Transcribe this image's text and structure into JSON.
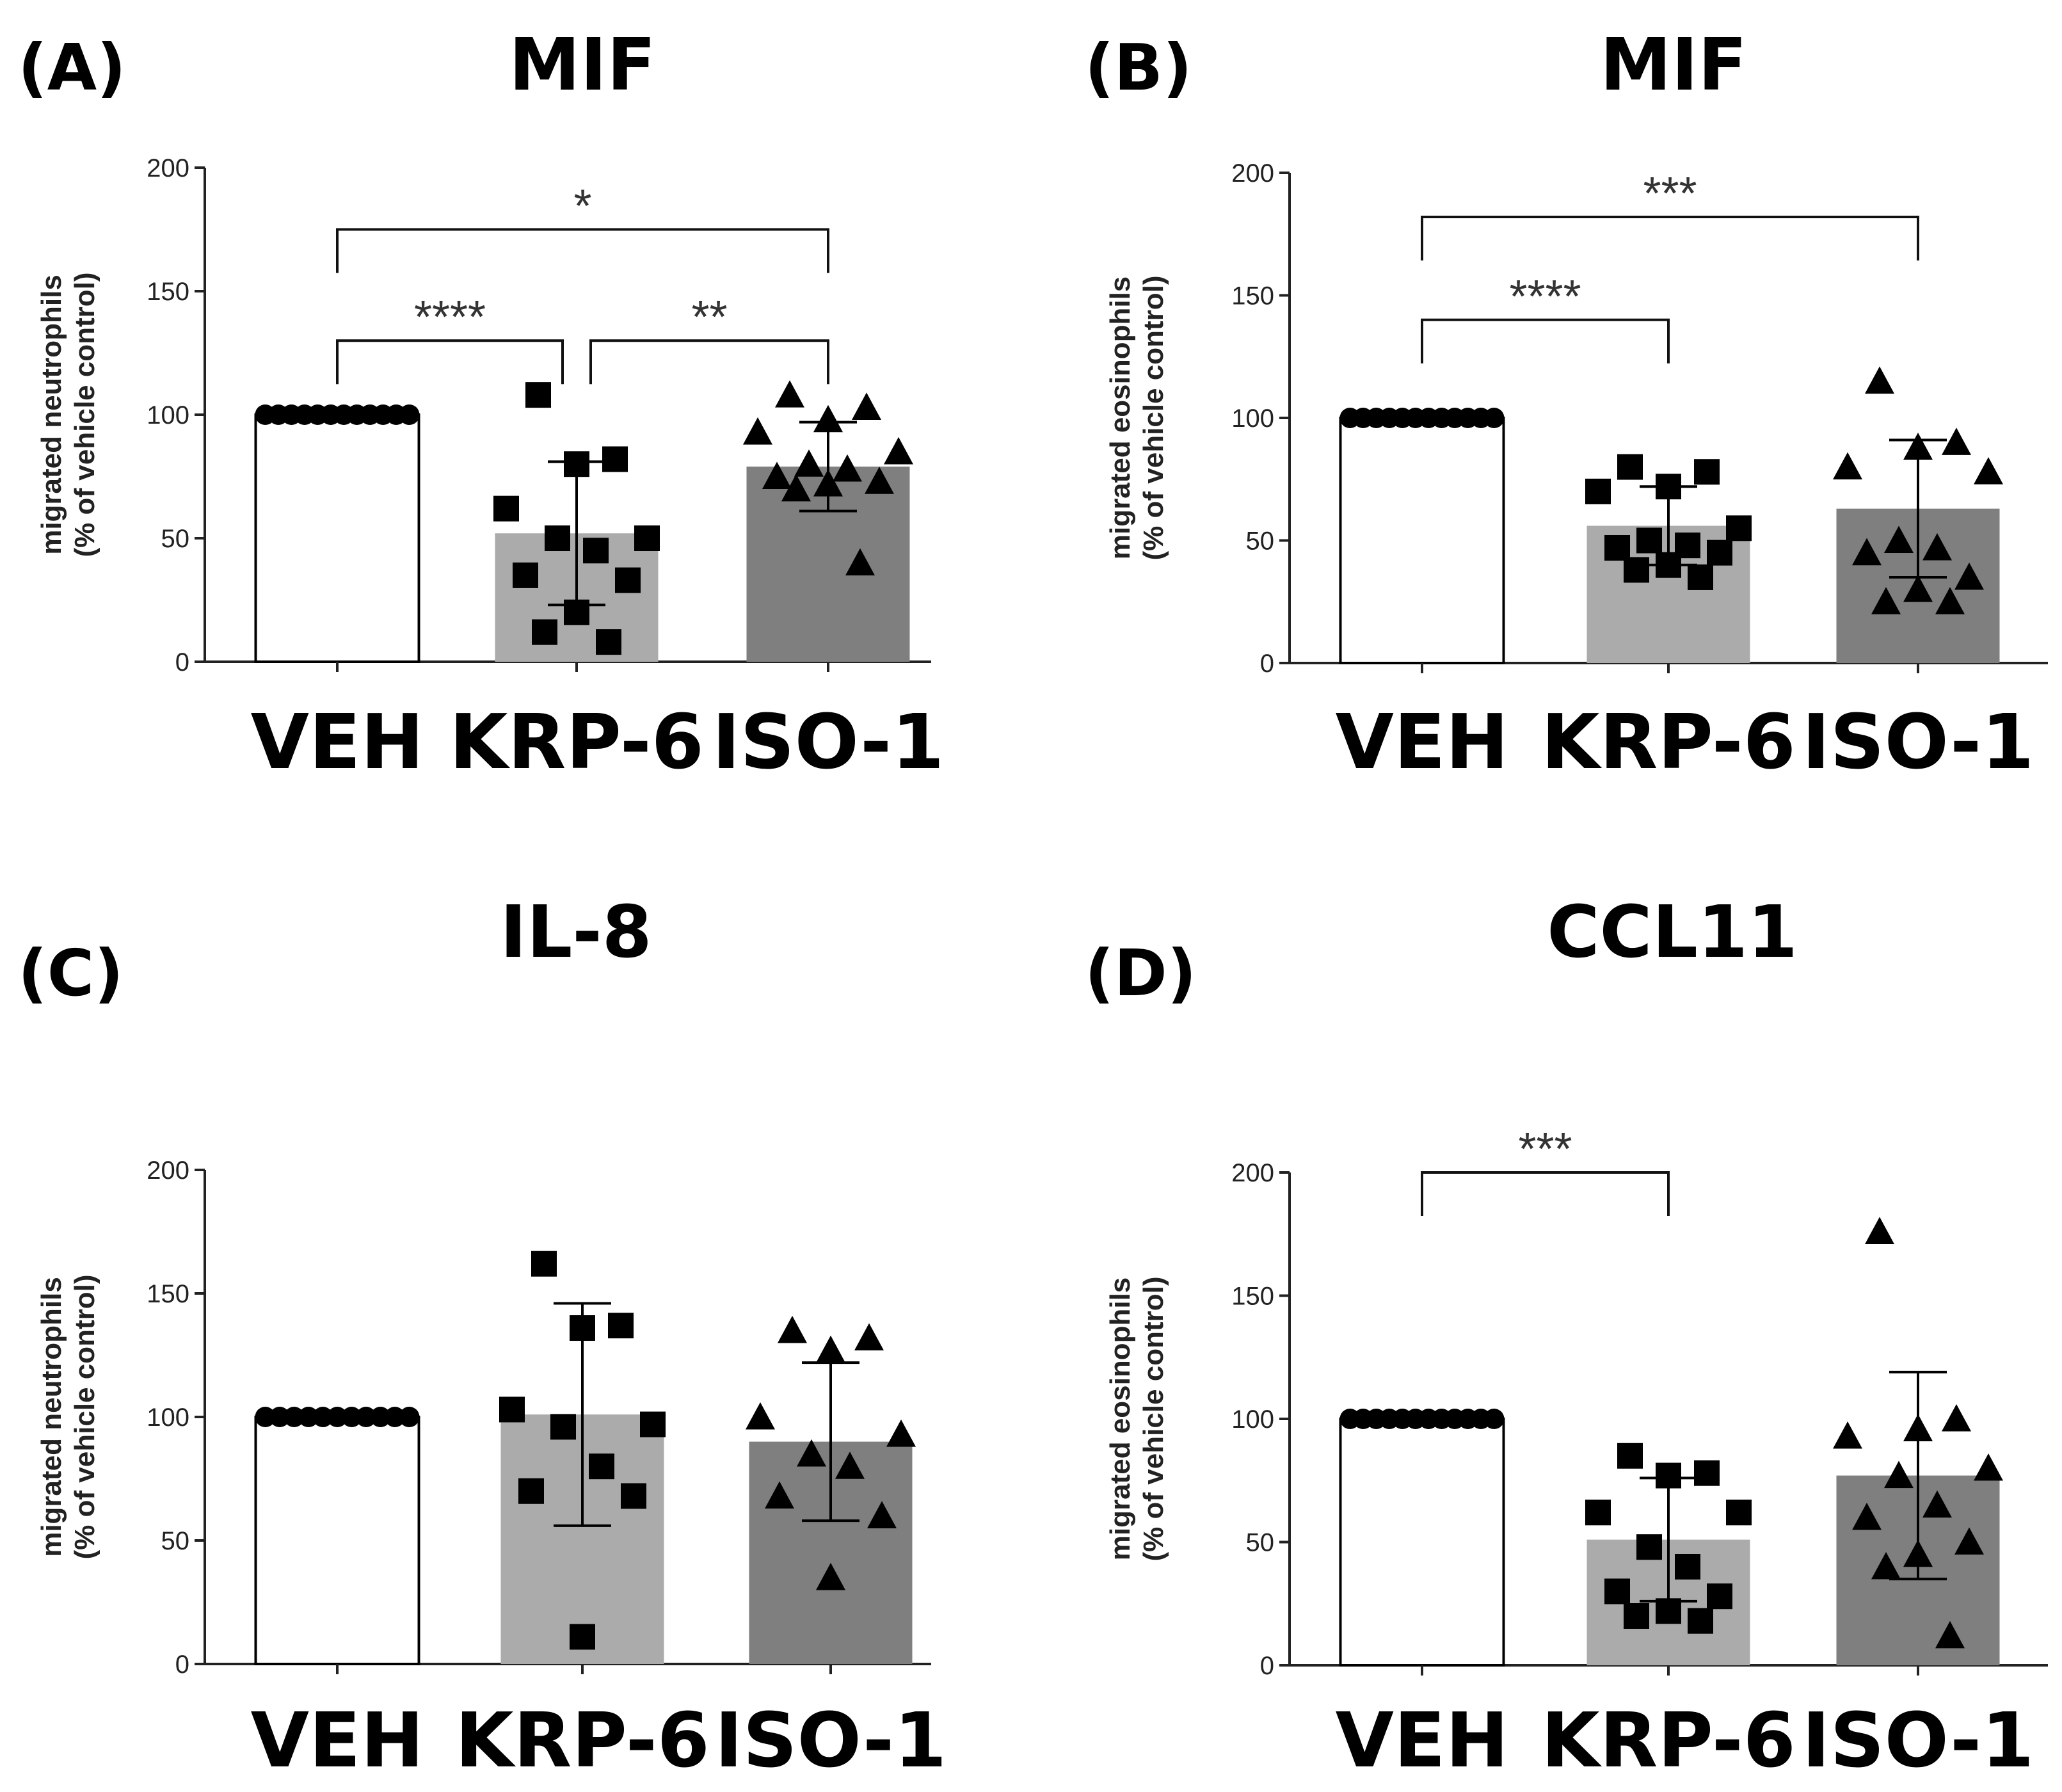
{
  "chart_data": [
    {
      "panel": "(A)",
      "title": "MIF",
      "type": "bar",
      "ylabel_line1": "migrated neutrophils",
      "ylabel_line2": "(% of vehicle control)",
      "ylim": [
        0,
        200
      ],
      "yticks": [
        "0",
        "50",
        "100",
        "150",
        "200"
      ],
      "categories": [
        "VEH",
        "KRP-6",
        "ISO-1"
      ],
      "values": [
        100,
        52,
        79
      ],
      "sd": [
        0,
        29,
        18
      ],
      "points": [
        [
          100,
          100,
          100,
          100,
          100,
          100,
          100,
          100,
          100,
          100,
          100,
          100
        ],
        [
          108,
          82,
          80,
          62,
          50,
          50,
          45,
          35,
          33,
          20,
          12,
          8
        ],
        [
          108,
          103,
          98,
          93,
          85,
          80,
          78,
          75,
          73,
          72,
          70,
          40
        ]
      ],
      "significance": [
        {
          "from": 0,
          "to": 2,
          "label": "*",
          "level": 175
        },
        {
          "from": 0,
          "to": 1,
          "label": "****",
          "level": 130
        },
        {
          "from": 1,
          "to": 2,
          "label": "**",
          "level": 130
        }
      ]
    },
    {
      "panel": "(B)",
      "title": "MIF",
      "type": "bar",
      "ylabel_line1": "migrated eosinophils",
      "ylabel_line2": "(% of vehicle control)",
      "ylim": [
        0,
        200
      ],
      "yticks": [
        "0",
        "50",
        "100",
        "150",
        "200"
      ],
      "categories": [
        "VEH",
        "KRP-6",
        "ISO-1"
      ],
      "values": [
        100,
        56,
        63
      ],
      "sd": [
        0,
        16,
        28
      ],
      "points": [
        [
          100,
          100,
          100,
          100,
          100,
          100,
          100,
          100,
          100,
          100,
          100,
          100
        ],
        [
          80,
          78,
          72,
          70,
          55,
          50,
          48,
          47,
          45,
          40,
          38,
          35
        ],
        [
          115,
          90,
          88,
          80,
          78,
          50,
          47,
          45,
          35,
          30,
          25,
          25
        ]
      ],
      "significance": [
        {
          "from": 0,
          "to": 2,
          "label": "***",
          "level": 182
        },
        {
          "from": 0,
          "to": 1,
          "label": "****",
          "level": 140
        }
      ]
    },
    {
      "panel": "(C)",
      "title": "IL-8",
      "type": "bar",
      "ylabel_line1": "migrated neutrophils",
      "ylabel_line2": "(% of vehicle control)",
      "ylim": [
        0,
        200
      ],
      "yticks": [
        "0",
        "50",
        "100",
        "150",
        "200"
      ],
      "categories": [
        "VEH",
        "KRP-6",
        "ISO-1"
      ],
      "values": [
        100,
        101,
        90
      ],
      "sd": [
        0,
        45,
        32
      ],
      "points": [
        [
          100,
          100,
          100,
          100,
          100,
          100,
          100,
          100,
          100,
          100,
          100
        ],
        [
          162,
          137,
          136,
          103,
          97,
          96,
          80,
          70,
          68,
          11
        ],
        [
          135,
          132,
          127,
          100,
          93,
          85,
          80,
          68,
          60,
          35
        ]
      ],
      "significance": []
    },
    {
      "panel": "(D)",
      "title": "CCL11",
      "type": "bar",
      "ylabel_line1": "migrated eosinophils",
      "ylabel_line2": "(% of vehicle control)",
      "ylim": [
        0,
        200
      ],
      "yticks": [
        "0",
        "50",
        "100",
        "150",
        "200"
      ],
      "categories": [
        "VEH",
        "KRP-6",
        "ISO-1"
      ],
      "values": [
        100,
        51,
        77
      ],
      "sd": [
        0,
        25,
        42
      ],
      "points": [
        [
          100,
          100,
          100,
          100,
          100,
          100,
          100,
          100,
          100,
          100,
          100,
          100
        ],
        [
          85,
          78,
          77,
          62,
          62,
          48,
          40,
          30,
          28,
          22,
          20,
          18
        ],
        [
          176,
          100,
          96,
          93,
          80,
          77,
          65,
          60,
          50,
          45,
          40,
          12
        ]
      ],
      "significance": [
        {
          "from": 0,
          "to": 1,
          "label": "***",
          "level": 200
        }
      ]
    }
  ]
}
